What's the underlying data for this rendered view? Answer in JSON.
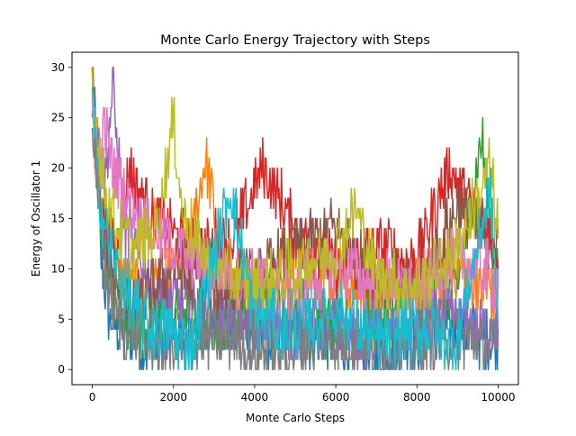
{
  "chart_data": {
    "type": "line",
    "title": "Monte Carlo Energy Trajectory with Steps",
    "xlabel": "Monte Carlo Steps",
    "ylabel": "Energy of Oscillator 1",
    "xlim": [
      -500,
      10500
    ],
    "ylim": [
      -1.5,
      31.5
    ],
    "xticks": [
      0,
      2000,
      4000,
      6000,
      8000,
      10000
    ],
    "yticks": [
      0,
      5,
      10,
      15,
      20,
      25,
      30
    ],
    "grid": false,
    "legend": "none",
    "colors": [
      "#1f77b4",
      "#ff7f0e",
      "#2ca02c",
      "#d62728",
      "#9467bd",
      "#8c564b",
      "#e377c2",
      "#7f7f7f",
      "#bcbd22",
      "#17becf"
    ],
    "series": [
      {
        "x": [
          0,
          100,
          200,
          400,
          800,
          1500,
          3000,
          5000,
          7000,
          9000,
          10000
        ],
        "y": [
          30,
          22,
          12,
          5,
          3,
          2,
          4,
          3,
          2,
          4,
          3
        ]
      },
      {
        "x": [
          0,
          100,
          200,
          500,
          1000,
          1800,
          2400,
          2800,
          3200,
          4000,
          5000,
          6000,
          7000,
          8000,
          9000,
          10000
        ],
        "y": [
          30,
          24,
          16,
          10,
          8,
          9,
          12,
          21,
          10,
          8,
          12,
          9,
          7,
          8,
          10,
          7
        ]
      },
      {
        "x": [
          0,
          100,
          300,
          600,
          1200,
          2000,
          3000,
          4500,
          6000,
          7500,
          9000,
          9600,
          9800,
          10000
        ],
        "y": [
          28,
          20,
          12,
          6,
          4,
          6,
          5,
          7,
          4,
          5,
          8,
          23,
          14,
          10
        ]
      },
      {
        "x": [
          0,
          100,
          300,
          600,
          900,
          1500,
          2500,
          3500,
          4000,
          4200,
          5000,
          6000,
          7000,
          8000,
          8800,
          9200,
          10000
        ],
        "y": [
          29,
          21,
          14,
          12,
          20,
          15,
          12,
          13,
          18,
          20,
          14,
          10,
          12,
          11,
          20,
          17,
          12
        ]
      },
      {
        "x": [
          0,
          100,
          300,
          500,
          800,
          1500,
          2500,
          4000,
          5500,
          7000,
          8500,
          10000
        ],
        "y": [
          30,
          24,
          18,
          28,
          14,
          8,
          6,
          5,
          4,
          3,
          5,
          4
        ]
      },
      {
        "x": [
          0,
          100,
          300,
          600,
          1000,
          2000,
          3000,
          4000,
          5000,
          6000,
          7000,
          8000,
          9000,
          10000
        ],
        "y": [
          27,
          20,
          12,
          8,
          6,
          10,
          8,
          9,
          12,
          14,
          9,
          8,
          16,
          12
        ]
      },
      {
        "x": [
          0,
          100,
          300,
          500,
          1000,
          1500,
          2000,
          3000,
          4000,
          5000,
          6000,
          7000,
          8000,
          9000,
          10000
        ],
        "y": [
          26,
          20,
          24,
          20,
          16,
          14,
          12,
          10,
          9,
          8,
          10,
          9,
          8,
          11,
          9
        ]
      },
      {
        "x": [
          0,
          100,
          300,
          600,
          1200,
          2000,
          3000,
          4500,
          6000,
          7500,
          9000,
          10000
        ],
        "y": [
          25,
          18,
          10,
          5,
          3,
          2,
          3,
          2,
          3,
          2,
          3,
          2
        ]
      },
      {
        "x": [
          0,
          100,
          300,
          600,
          1000,
          1600,
          2000,
          2200,
          2600,
          3200,
          4000,
          5000,
          6000,
          6500,
          7000,
          8000,
          9000,
          9800,
          10000
        ],
        "y": [
          29,
          24,
          18,
          14,
          12,
          14,
          25,
          16,
          12,
          10,
          8,
          10,
          12,
          16,
          9,
          8,
          12,
          20,
          14
        ]
      },
      {
        "x": [
          0,
          100,
          300,
          600,
          1000,
          1500,
          2500,
          3400,
          4000,
          5000,
          6000,
          7000,
          8000,
          9000,
          9800,
          10000
        ],
        "y": [
          28,
          20,
          14,
          10,
          6,
          4,
          3,
          18,
          5,
          4,
          6,
          3,
          4,
          3,
          18,
          5
        ]
      }
    ]
  }
}
